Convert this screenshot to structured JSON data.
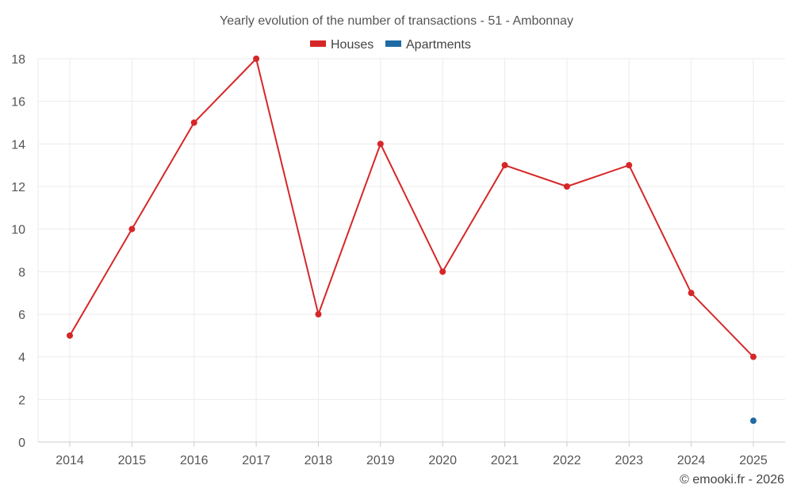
{
  "chart_data": {
    "type": "line",
    "title": "Yearly evolution of the number of transactions - 51 - Ambonnay",
    "categories": [
      "2014",
      "2015",
      "2016",
      "2017",
      "2018",
      "2019",
      "2020",
      "2021",
      "2022",
      "2023",
      "2024",
      "2025"
    ],
    "series": [
      {
        "name": "Houses",
        "color": "#d62728",
        "values": [
          5,
          10,
          15,
          18,
          6,
          14,
          8,
          13,
          12,
          13,
          7,
          4
        ]
      },
      {
        "name": "Apartments",
        "color": "#1f6aa5",
        "values": [
          null,
          null,
          null,
          null,
          null,
          null,
          null,
          null,
          null,
          null,
          null,
          1
        ]
      }
    ],
    "ylim": [
      0,
      18
    ],
    "yticks": [
      0,
      2,
      4,
      6,
      8,
      10,
      12,
      14,
      16,
      18
    ],
    "xlabel": "",
    "ylabel": "",
    "grid": true,
    "legend_position": "top-center"
  },
  "credit": "© emooki.fr - 2026"
}
